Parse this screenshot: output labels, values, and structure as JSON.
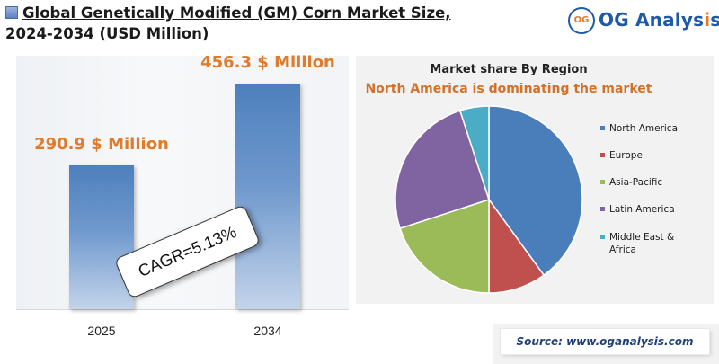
{
  "header": {
    "title_line1": "Global Genetically Modified (GM) Corn Market Size,",
    "title_line2": "2024-2034 (USD Million)"
  },
  "logo": {
    "badge": "OG",
    "name_start": "OG Analys",
    "name_dot": "i",
    "name_end": "s"
  },
  "colors": {
    "bar": "#4e80bd",
    "bar_label": "#e07b2a",
    "subtitle": "#d2712a",
    "north_america": "#4a7ebb",
    "europe": "#c0504d",
    "asia_pacific": "#9bbb59",
    "latin_america": "#8064a2",
    "middle_east_africa": "#4bacc6"
  },
  "chart_data": [
    {
      "type": "bar",
      "categories": [
        "2025",
        "2034"
      ],
      "values": [
        290.9,
        456.3
      ],
      "data_labels": [
        "290.9 $ Million",
        "456.3 $ Million"
      ],
      "ylim": [
        0,
        500
      ],
      "grid": false,
      "annotation": "CAGR=5.13%"
    },
    {
      "type": "pie",
      "title": "Market share By Region",
      "subtitle": "North America is dominating the market",
      "legend_position": "right",
      "slices": [
        {
          "label": "North America",
          "value": 40,
          "color": "#4a7ebb"
        },
        {
          "label": "Europe",
          "value": 10,
          "color": "#c0504d"
        },
        {
          "label": "Asia-Pacific",
          "value": 20,
          "color": "#9bbb59"
        },
        {
          "label": "Latin America",
          "value": 25,
          "color": "#8064a2"
        },
        {
          "label": "Middle East & Africa",
          "label_lines": [
            "Middle East &",
            "Africa"
          ],
          "value": 5,
          "color": "#4bacc6"
        }
      ]
    }
  ],
  "source": "Source: www.oganalysis.com"
}
